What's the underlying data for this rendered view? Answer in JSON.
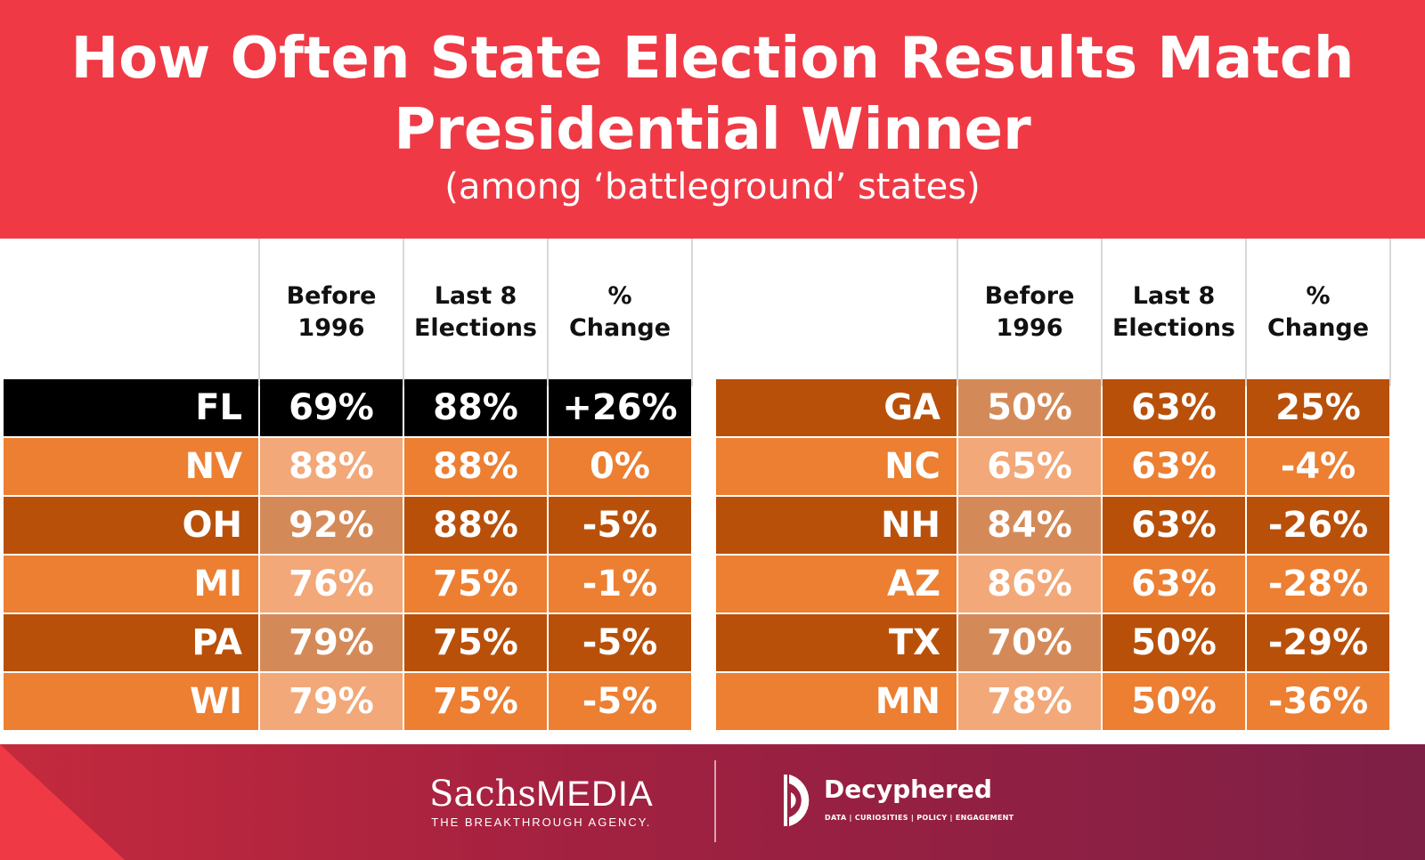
{
  "title_line1": "How Often State Election Results Match",
  "title_line2": "Presidential Winner",
  "subtitle": "(among ‘battleground’ states)",
  "colors": {
    "background": "#ef3a46",
    "highlight_row": "#000000",
    "dark_row": "#b9500a",
    "light_row": "#ec7f32",
    "dark_before_cell": "#d48a58",
    "light_before_cell": "#f2a878"
  },
  "chart_data": {
    "type": "table",
    "columns": [
      "",
      "Before\n1996",
      "Last 8\nElections",
      "%\nChange"
    ],
    "tables": [
      {
        "rows": [
          {
            "state": "FL",
            "before_1996": "69%",
            "last_8": "88%",
            "change": "+26%",
            "style": "highlight"
          },
          {
            "state": "NV",
            "before_1996": "88%",
            "last_8": "88%",
            "change": "0%",
            "style": "light"
          },
          {
            "state": "OH",
            "before_1996": "92%",
            "last_8": "88%",
            "change": "-5%",
            "style": "dark"
          },
          {
            "state": "MI",
            "before_1996": "76%",
            "last_8": "75%",
            "change": "-1%",
            "style": "light"
          },
          {
            "state": "PA",
            "before_1996": "79%",
            "last_8": "75%",
            "change": "-5%",
            "style": "dark"
          },
          {
            "state": "WI",
            "before_1996": "79%",
            "last_8": "75%",
            "change": "-5%",
            "style": "light"
          }
        ]
      },
      {
        "rows": [
          {
            "state": "GA",
            "before_1996": "50%",
            "last_8": "63%",
            "change": "25%",
            "style": "dark"
          },
          {
            "state": "NC",
            "before_1996": "65%",
            "last_8": "63%",
            "change": "-4%",
            "style": "light"
          },
          {
            "state": "NH",
            "before_1996": "84%",
            "last_8": "63%",
            "change": "-26%",
            "style": "dark"
          },
          {
            "state": "AZ",
            "before_1996": "86%",
            "last_8": "63%",
            "change": "-28%",
            "style": "light"
          },
          {
            "state": "TX",
            "before_1996": "70%",
            "last_8": "50%",
            "change": "-29%",
            "style": "dark"
          },
          {
            "state": "MN",
            "before_1996": "78%",
            "last_8": "50%",
            "change": "-36%",
            "style": "light"
          }
        ]
      }
    ]
  },
  "footer": {
    "sachs_name": "Sachs",
    "sachs_media": "MEDIA",
    "sachs_tagline": "THE BREAKTHROUGH AGENCY.",
    "decyphered_name": "Decyphered",
    "decyphered_tagline": "DATA | CURIOSITIES | POLICY | ENGAGEMENT"
  }
}
